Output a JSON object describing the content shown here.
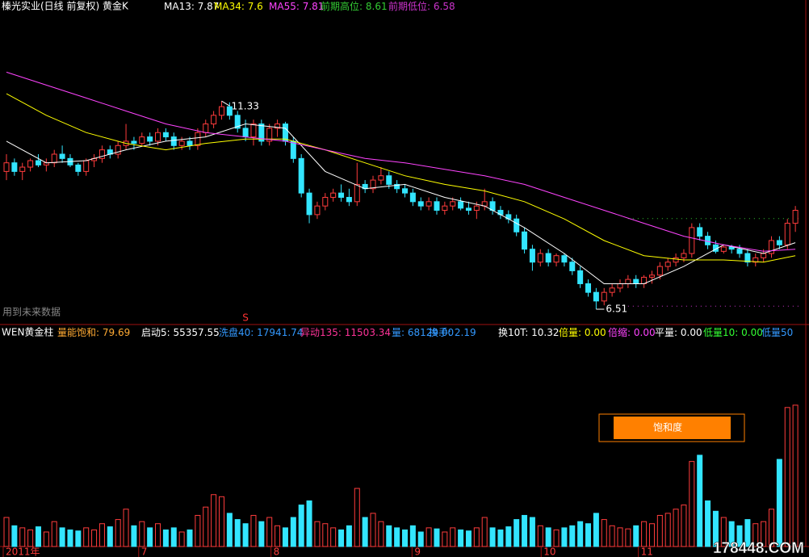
{
  "chart_data": [
    {
      "type": "candlestick",
      "title": "榛光实业(日线 前复权) 黄金K",
      "up_color": "#ff3c3c",
      "down_color": "#33e5ff",
      "ylim": [
        6.23,
        13.39
      ],
      "ohlc": [
        [
          9.7,
          10.1,
          9.5,
          9.9
        ],
        [
          9.9,
          10.0,
          9.6,
          9.7
        ],
        [
          9.7,
          9.9,
          9.5,
          9.8
        ],
        [
          9.8,
          10.0,
          9.7,
          9.95
        ],
        [
          9.95,
          10.1,
          9.8,
          9.85
        ],
        [
          9.85,
          10.0,
          9.7,
          9.9
        ],
        [
          9.9,
          10.2,
          9.8,
          10.1
        ],
        [
          10.1,
          10.3,
          9.9,
          10.0
        ],
        [
          10.0,
          10.1,
          9.8,
          9.85
        ],
        [
          9.85,
          9.9,
          9.6,
          9.7
        ],
        [
          9.7,
          10.0,
          9.6,
          9.95
        ],
        [
          9.95,
          10.1,
          9.8,
          10.0
        ],
        [
          10.0,
          10.3,
          9.9,
          10.2
        ],
        [
          10.2,
          10.3,
          10.0,
          10.1
        ],
        [
          10.1,
          10.4,
          10.0,
          10.3
        ],
        [
          10.3,
          10.8,
          10.2,
          10.4
        ],
        [
          10.4,
          10.5,
          10.2,
          10.35
        ],
        [
          10.35,
          10.6,
          10.3,
          10.5
        ],
        [
          10.5,
          10.6,
          10.3,
          10.4
        ],
        [
          10.4,
          10.7,
          10.3,
          10.6
        ],
        [
          10.6,
          10.7,
          10.4,
          10.5
        ],
        [
          10.5,
          10.6,
          10.2,
          10.3
        ],
        [
          10.3,
          10.5,
          10.2,
          10.4
        ],
        [
          10.4,
          10.5,
          10.2,
          10.3
        ],
        [
          10.3,
          10.7,
          10.2,
          10.6
        ],
        [
          10.6,
          10.9,
          10.5,
          10.8
        ],
        [
          10.8,
          11.1,
          10.7,
          11.0
        ],
        [
          11.0,
          11.33,
          10.9,
          11.2
        ],
        [
          11.2,
          11.3,
          10.9,
          11.0
        ],
        [
          11.0,
          11.1,
          10.6,
          10.7
        ],
        [
          10.7,
          10.9,
          10.4,
          10.5
        ],
        [
          10.5,
          10.9,
          10.3,
          10.8
        ],
        [
          10.8,
          10.9,
          10.3,
          10.4
        ],
        [
          10.4,
          10.8,
          10.3,
          10.7
        ],
        [
          10.7,
          10.9,
          10.5,
          10.8
        ],
        [
          10.8,
          10.85,
          10.3,
          10.4
        ],
        [
          10.4,
          10.5,
          9.9,
          10.0
        ],
        [
          10.0,
          10.1,
          9.1,
          9.2
        ],
        [
          9.2,
          9.3,
          8.5,
          8.7
        ],
        [
          8.7,
          9.0,
          8.6,
          8.9
        ],
        [
          8.9,
          9.2,
          8.8,
          9.1
        ],
        [
          9.1,
          9.3,
          9.0,
          9.2
        ],
        [
          9.2,
          9.4,
          9.0,
          9.1
        ],
        [
          9.1,
          9.3,
          8.9,
          9.0
        ],
        [
          9.0,
          9.9,
          8.9,
          9.4
        ],
        [
          9.4,
          9.5,
          9.2,
          9.3
        ],
        [
          9.3,
          9.6,
          9.2,
          9.5
        ],
        [
          9.5,
          9.8,
          9.4,
          9.6
        ],
        [
          9.6,
          9.7,
          9.3,
          9.4
        ],
        [
          9.4,
          9.5,
          9.2,
          9.3
        ],
        [
          9.3,
          9.4,
          9.1,
          9.2
        ],
        [
          9.2,
          9.3,
          8.9,
          9.0
        ],
        [
          9.0,
          9.1,
          8.8,
          8.9
        ],
        [
          8.9,
          9.1,
          8.8,
          9.0
        ],
        [
          9.0,
          9.1,
          8.7,
          8.8
        ],
        [
          8.8,
          9.0,
          8.7,
          8.9
        ],
        [
          8.9,
          9.1,
          8.8,
          9.0
        ],
        [
          9.0,
          9.1,
          8.8,
          8.85
        ],
        [
          8.85,
          9.0,
          8.7,
          8.8
        ],
        [
          8.8,
          9.0,
          8.6,
          8.9
        ],
        [
          8.9,
          9.3,
          8.8,
          9.0
        ],
        [
          9.0,
          9.1,
          8.7,
          8.8
        ],
        [
          8.8,
          8.9,
          8.6,
          8.7
        ],
        [
          8.7,
          8.8,
          8.5,
          8.6
        ],
        [
          8.6,
          8.7,
          8.2,
          8.3
        ],
        [
          8.3,
          8.4,
          7.8,
          7.9
        ],
        [
          7.9,
          8.0,
          7.4,
          7.6
        ],
        [
          7.6,
          7.9,
          7.5,
          7.8
        ],
        [
          7.8,
          7.9,
          7.5,
          7.6
        ],
        [
          7.6,
          7.8,
          7.5,
          7.75
        ],
        [
          7.75,
          7.8,
          7.5,
          7.6
        ],
        [
          7.6,
          7.7,
          7.3,
          7.4
        ],
        [
          7.4,
          7.5,
          7.0,
          7.1
        ],
        [
          7.1,
          7.2,
          6.8,
          6.9
        ],
        [
          6.9,
          7.0,
          6.51,
          6.7
        ],
        [
          6.7,
          7.0,
          6.6,
          6.9
        ],
        [
          6.9,
          7.1,
          6.8,
          7.0
        ],
        [
          7.0,
          7.2,
          6.9,
          7.1
        ],
        [
          7.1,
          7.3,
          7.0,
          7.2
        ],
        [
          7.2,
          7.3,
          7.0,
          7.1
        ],
        [
          7.1,
          7.3,
          7.0,
          7.25
        ],
        [
          7.25,
          7.4,
          7.1,
          7.3
        ],
        [
          7.3,
          7.6,
          7.2,
          7.5
        ],
        [
          7.5,
          7.7,
          7.4,
          7.6
        ],
        [
          7.6,
          7.8,
          7.5,
          7.7
        ],
        [
          7.7,
          7.9,
          7.6,
          7.8
        ],
        [
          7.8,
          8.5,
          7.7,
          8.4
        ],
        [
          8.4,
          8.5,
          8.1,
          8.2
        ],
        [
          8.2,
          8.3,
          7.9,
          8.0
        ],
        [
          8.0,
          8.1,
          7.8,
          7.85
        ],
        [
          7.85,
          8.0,
          7.8,
          7.95
        ],
        [
          7.95,
          8.0,
          7.8,
          7.9
        ],
        [
          7.9,
          8.0,
          7.7,
          7.8
        ],
        [
          7.8,
          7.9,
          7.5,
          7.6
        ],
        [
          7.6,
          7.8,
          7.5,
          7.7
        ],
        [
          7.7,
          7.9,
          7.6,
          7.8
        ],
        [
          7.8,
          8.2,
          7.7,
          8.1
        ],
        [
          8.1,
          8.2,
          7.9,
          8.0
        ],
        [
          8.0,
          8.6,
          7.9,
          8.5
        ],
        [
          8.5,
          8.9,
          8.3,
          8.8
        ]
      ],
      "ma_x": [
        0,
        5,
        10,
        15,
        20,
        25,
        30,
        35,
        40,
        45,
        50,
        55,
        60,
        65,
        70,
        75,
        80,
        85,
        90,
        95,
        99
      ],
      "moving_averages": [
        {
          "label": "MA13:",
          "value": 7.87,
          "color": "#ffffff",
          "values": [
            10.4,
            9.9,
            9.95,
            10.2,
            10.4,
            10.5,
            10.8,
            10.7,
            9.7,
            9.3,
            9.4,
            9.1,
            8.9,
            8.4,
            7.8,
            7.1,
            7.1,
            7.5,
            8.0,
            7.8,
            8.05
          ]
        },
        {
          "label": "MA34:",
          "value": 7.6,
          "color": "#ffff00",
          "values": [
            11.5,
            11.0,
            10.6,
            10.35,
            10.2,
            10.35,
            10.45,
            10.45,
            10.2,
            9.9,
            9.6,
            9.4,
            9.25,
            9.0,
            8.6,
            8.1,
            7.75,
            7.65,
            7.65,
            7.6,
            7.75
          ]
        },
        {
          "label": "MA55:",
          "value": 7.81,
          "color": "#ff44ff",
          "values": [
            12.0,
            11.7,
            11.4,
            11.1,
            10.8,
            10.6,
            10.5,
            10.4,
            10.2,
            10.0,
            9.9,
            9.75,
            9.6,
            9.4,
            9.1,
            8.8,
            8.5,
            8.2,
            8.0,
            7.85,
            7.9
          ]
        }
      ],
      "levels": [
        {
          "label": "前期高位:",
          "value": 8.61,
          "color": "#33cc33"
        },
        {
          "label": "前期低位:",
          "value": 6.58,
          "color": "#cc33cc"
        }
      ],
      "peak_label": 11.33,
      "trough_label": 6.51,
      "note": "用到未来数据",
      "signal": "S"
    },
    {
      "type": "volume",
      "title": "WEN黄金柱",
      "ylim": [
        0,
        100000
      ],
      "indicators": [
        {
          "label": "量能饱和:",
          "value": 79.69,
          "color": "#ffaa33"
        },
        {
          "label": "启动5:",
          "value": 55357.55,
          "color": "#ffffff"
        },
        {
          "label": "洗盘40:",
          "value": 17941.74,
          "color": "#3399ff"
        },
        {
          "label": "异动135:",
          "value": 11503.34,
          "color": "#ff3399"
        },
        {
          "label": "量:",
          "value": 68129,
          "value_label": "68129.00",
          "color": "#3399ff"
        },
        {
          "label": "换手:",
          "value": 2.19,
          "color": "#3399ff"
        },
        {
          "label": "换10T:",
          "value": 10.32,
          "color": "#ffffff"
        },
        {
          "label": "倍量:",
          "value": 0,
          "value_label": "0.00",
          "color": "#ffff00"
        },
        {
          "label": "倍缩:",
          "value": 0,
          "value_label": "0.00",
          "color": "#ff44ff"
        },
        {
          "label": "平量:",
          "value": 0,
          "value_label": "0.00",
          "color": "#ffffff"
        },
        {
          "label": "低量10:",
          "value": 0,
          "value_label": "0.00",
          "color": "#33ff33"
        },
        {
          "label": "低量50",
          "color": "#3399ff"
        }
      ],
      "values": [
        14000,
        10000,
        9000,
        8000,
        9500,
        7000,
        12000,
        9000,
        8000,
        7500,
        9000,
        8000,
        11000,
        9500,
        13000,
        18000,
        10000,
        12000,
        9000,
        11000,
        8000,
        9000,
        7000,
        8000,
        15000,
        19000,
        25000,
        24000,
        16000,
        13000,
        11000,
        15000,
        12000,
        14000,
        10000,
        9000,
        14000,
        20000,
        22000,
        12000,
        11000,
        9000,
        8000,
        10000,
        28000,
        14000,
        16000,
        12000,
        10000,
        9000,
        8000,
        10000,
        7000,
        9000,
        8500,
        7000,
        9000,
        8000,
        7500,
        9000,
        14000,
        9000,
        8000,
        9500,
        13000,
        15000,
        14000,
        10000,
        9000,
        8000,
        9000,
        10000,
        12000,
        11000,
        16000,
        13000,
        10000,
        9000,
        8500,
        10000,
        12000,
        11000,
        15000,
        16000,
        18000,
        20000,
        41000,
        44000,
        22000,
        17000,
        14000,
        12000,
        10000,
        13000,
        11000,
        12000,
        18000,
        42000,
        67000,
        68129
      ],
      "gauge_label": "饱和度",
      "xticks": [
        {
          "value": 0,
          "label": "2011年"
        },
        {
          "value": 17,
          "label": "7"
        },
        {
          "value": 33.6,
          "label": "8"
        },
        {
          "value": 51.3,
          "label": "9"
        },
        {
          "value": 67.5,
          "label": "10"
        },
        {
          "value": 79.7,
          "label": "11"
        }
      ]
    }
  ],
  "watermark": "178448.COM"
}
